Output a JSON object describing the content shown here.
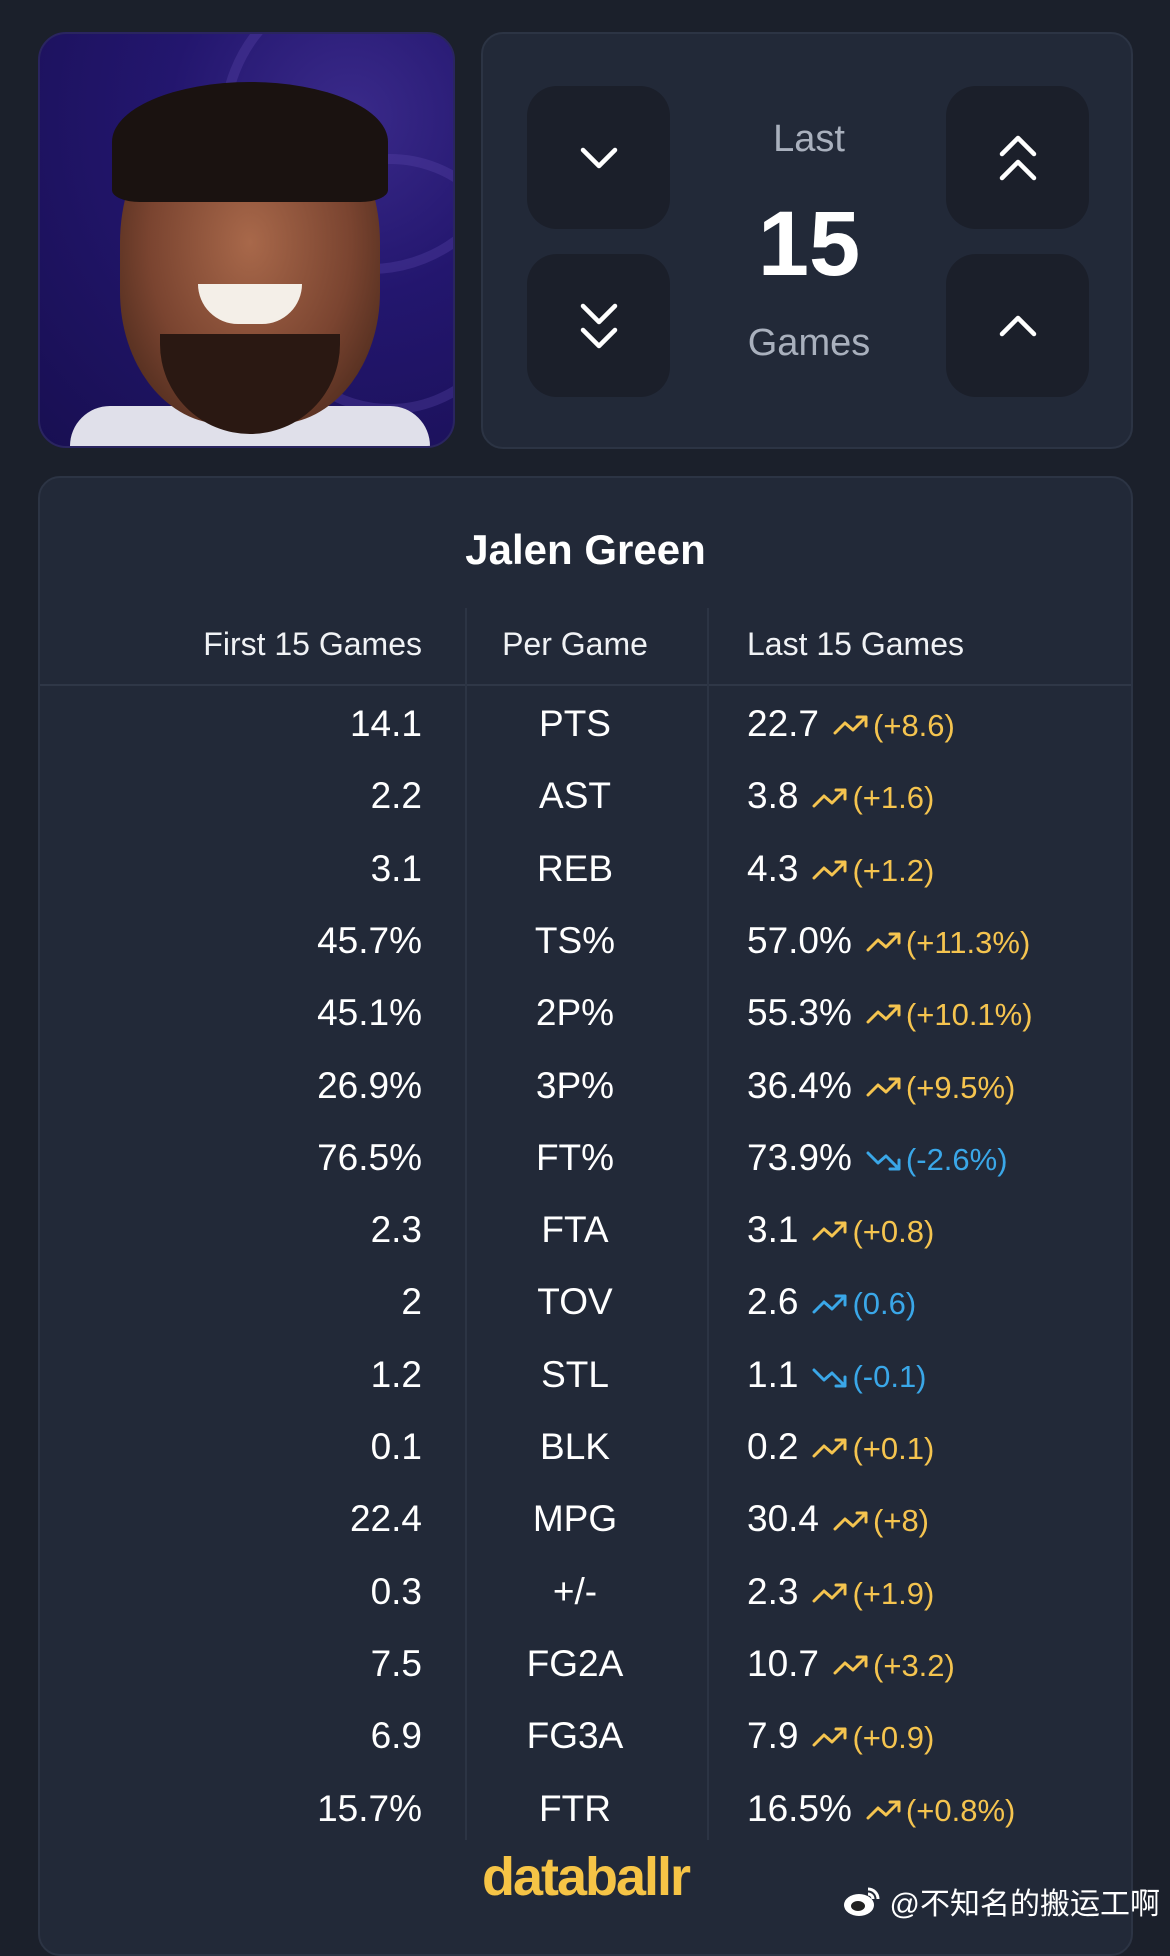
{
  "player": {
    "name": "Jalen Green"
  },
  "selector": {
    "top_label": "Last",
    "count": "15",
    "bottom_label": "Games"
  },
  "headers": {
    "left": "First 15 Games",
    "center": "Per Game",
    "right": "Last 15 Games"
  },
  "colors": {
    "up": "#f5c44f",
    "down": "#3aa7e8",
    "accent": "#f6c446"
  },
  "rows": [
    {
      "first": "14.1",
      "stat": "PTS",
      "last": "22.7",
      "delta": "(+8.6)",
      "trend": "up",
      "color": "yellow"
    },
    {
      "first": "2.2",
      "stat": "AST",
      "last": "3.8",
      "delta": "(+1.6)",
      "trend": "up",
      "color": "yellow"
    },
    {
      "first": "3.1",
      "stat": "REB",
      "last": "4.3",
      "delta": "(+1.2)",
      "trend": "up",
      "color": "yellow"
    },
    {
      "first": "45.7%",
      "stat": "TS%",
      "last": "57.0%",
      "delta": "(+11.3%)",
      "trend": "up",
      "color": "yellow"
    },
    {
      "first": "45.1%",
      "stat": "2P%",
      "last": "55.3%",
      "delta": "(+10.1%)",
      "trend": "up",
      "color": "yellow"
    },
    {
      "first": "26.9%",
      "stat": "3P%",
      "last": "36.4%",
      "delta": "(+9.5%)",
      "trend": "up",
      "color": "yellow"
    },
    {
      "first": "76.5%",
      "stat": "FT%",
      "last": "73.9%",
      "delta": "(-2.6%)",
      "trend": "down",
      "color": "blue"
    },
    {
      "first": "2.3",
      "stat": "FTA",
      "last": "3.1",
      "delta": "(+0.8)",
      "trend": "up",
      "color": "yellow"
    },
    {
      "first": "2",
      "stat": "TOV",
      "last": "2.6",
      "delta": "(0.6)",
      "trend": "up",
      "color": "blue"
    },
    {
      "first": "1.2",
      "stat": "STL",
      "last": "1.1",
      "delta": "(-0.1)",
      "trend": "down",
      "color": "blue"
    },
    {
      "first": "0.1",
      "stat": "BLK",
      "last": "0.2",
      "delta": "(+0.1)",
      "trend": "up",
      "color": "yellow"
    },
    {
      "first": "22.4",
      "stat": "MPG",
      "last": "30.4",
      "delta": "(+8)",
      "trend": "up",
      "color": "yellow"
    },
    {
      "first": "0.3",
      "stat": "+/-",
      "last": "2.3",
      "delta": "(+1.9)",
      "trend": "up",
      "color": "yellow"
    },
    {
      "first": "7.5",
      "stat": "FG2A",
      "last": "10.7",
      "delta": "(+3.2)",
      "trend": "up",
      "color": "yellow"
    },
    {
      "first": "6.9",
      "stat": "FG3A",
      "last": "7.9",
      "delta": "(+0.9)",
      "trend": "up",
      "color": "yellow"
    },
    {
      "first": "15.7%",
      "stat": "FTR",
      "last": "16.5%",
      "delta": "(+0.8%)",
      "trend": "up",
      "color": "yellow"
    }
  ],
  "brand": "databallr",
  "watermark": "@不知名的搬运工啊"
}
